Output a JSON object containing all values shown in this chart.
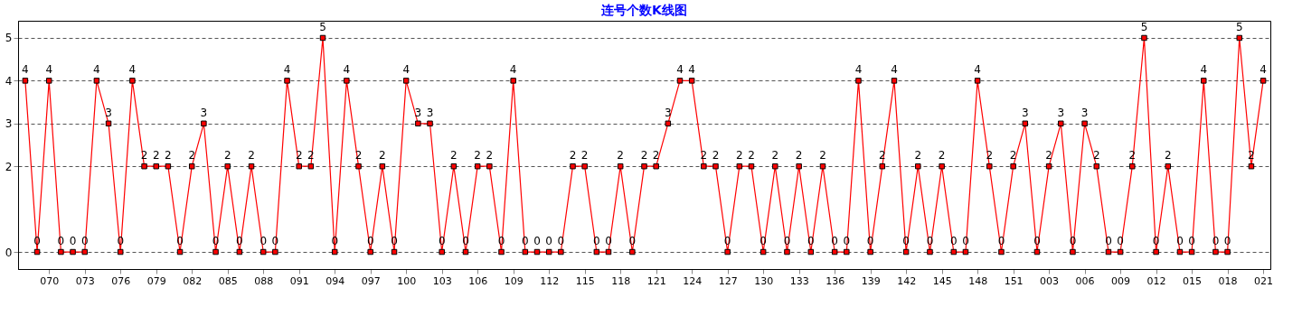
{
  "chart_data": {
    "type": "line",
    "title": "连号个数K线图",
    "categories": [
      null,
      null,
      "070",
      null,
      null,
      "073",
      null,
      null,
      "076",
      null,
      null,
      "079",
      null,
      null,
      "082",
      null,
      null,
      "085",
      null,
      null,
      "088",
      null,
      null,
      "091",
      null,
      null,
      "094",
      null,
      null,
      "097",
      null,
      null,
      "100",
      null,
      null,
      "103",
      null,
      null,
      "106",
      null,
      null,
      "109",
      null,
      null,
      "112",
      null,
      null,
      "115",
      null,
      null,
      "118",
      null,
      null,
      "121",
      null,
      null,
      "124",
      null,
      null,
      "127",
      null,
      null,
      "130",
      null,
      null,
      "133",
      null,
      null,
      "136",
      null,
      null,
      "139",
      null,
      null,
      "142",
      null,
      null,
      "145",
      null,
      null,
      "148",
      null,
      null,
      "151",
      null,
      null,
      "003",
      null,
      null,
      "006",
      null,
      null,
      "009",
      null,
      null,
      "012",
      null,
      null,
      "015",
      null,
      null,
      "018",
      null,
      null,
      "021"
    ],
    "series": [
      {
        "color": "#ff0000",
        "values": [
          4,
          0,
          4,
          0,
          0,
          0,
          4,
          3,
          0,
          4,
          2,
          2,
          2,
          0,
          2,
          3,
          0,
          2,
          0,
          2,
          0,
          0,
          4,
          2,
          2,
          5,
          0,
          4,
          2,
          0,
          2,
          0,
          4,
          3,
          3,
          0,
          2,
          0,
          2,
          2,
          0,
          4,
          0,
          0,
          0,
          0,
          2,
          2,
          0,
          0,
          2,
          0,
          2,
          2,
          3,
          4,
          4,
          2,
          2,
          0,
          2,
          2,
          0,
          2,
          0,
          2,
          0,
          2,
          0,
          0,
          4,
          0,
          2,
          4,
          0,
          2,
          0,
          2,
          0,
          0,
          4,
          2,
          0,
          2,
          3,
          0,
          2,
          3,
          0,
          3,
          2,
          0,
          0,
          2,
          5,
          0,
          2,
          0,
          0,
          4,
          0,
          0,
          5,
          2,
          4
        ]
      }
    ],
    "ylim": [
      -0.4,
      5.4
    ],
    "yticks": [
      0,
      2,
      3,
      4,
      5
    ],
    "grid": "y",
    "marker": "square",
    "line_style": "solid",
    "data_labels": true
  }
}
